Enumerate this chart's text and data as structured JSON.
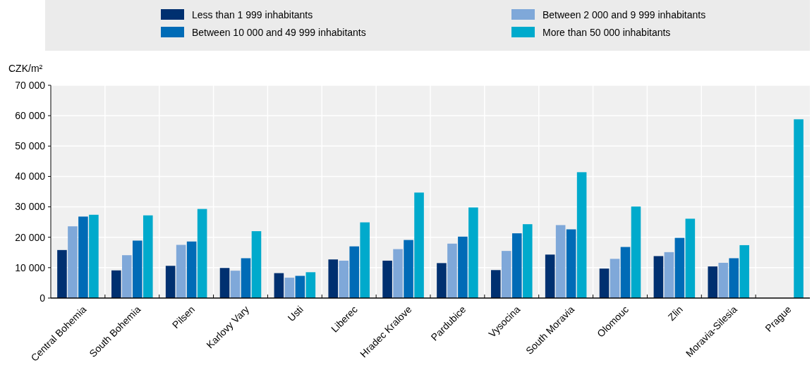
{
  "chart_data": {
    "type": "bar",
    "ylabel": "CZK/m²",
    "categories": [
      "Central Bohemia",
      "South Bohemia",
      "Pilsen",
      "Karlovy Vary",
      "Usti",
      "Liberec",
      "Hradec Kralove",
      "Pardubice",
      "Vysocina",
      "South Moravia",
      "Olomouc",
      "Zlin",
      "Moravia-Silesia",
      "Prague"
    ],
    "series": [
      {
        "name": "Less than 1 999 inhabitants",
        "color": "#003070",
        "values": [
          15800,
          9100,
          10600,
          9900,
          8200,
          12700,
          12300,
          11500,
          9200,
          14300,
          9700,
          13800,
          10400,
          null
        ]
      },
      {
        "name": "Between 2 000 and 9 999 inhabitants",
        "color": "#7fa8d9",
        "values": [
          23600,
          14100,
          17500,
          9000,
          6700,
          12300,
          16100,
          17900,
          15500,
          24000,
          12900,
          15100,
          11600,
          null
        ]
      },
      {
        "name": "Between 10 000 and 49 999 inhabitants",
        "color": "#006bb6",
        "values": [
          26800,
          18900,
          18600,
          13100,
          7300,
          17000,
          19100,
          20200,
          21300,
          22600,
          16800,
          19800,
          13100,
          null
        ]
      },
      {
        "name": "More than 50 000 inhabitants",
        "color": "#00aacc",
        "values": [
          27400,
          27200,
          29300,
          22000,
          8500,
          24900,
          34700,
          29800,
          24300,
          41400,
          30100,
          26100,
          17400,
          58800
        ]
      }
    ],
    "ylim": [
      0,
      70000
    ],
    "yticks": [
      {
        "value": 0,
        "label": "0"
      },
      {
        "value": 10000,
        "label": "10 000"
      },
      {
        "value": 20000,
        "label": "20 000"
      },
      {
        "value": 30000,
        "label": "30 000"
      },
      {
        "value": 40000,
        "label": "40 000"
      },
      {
        "value": 50000,
        "label": "50 000"
      },
      {
        "value": 60000,
        "label": "60 000"
      },
      {
        "value": 70000,
        "label": "70 000"
      }
    ],
    "grid": true,
    "legend": "top"
  }
}
